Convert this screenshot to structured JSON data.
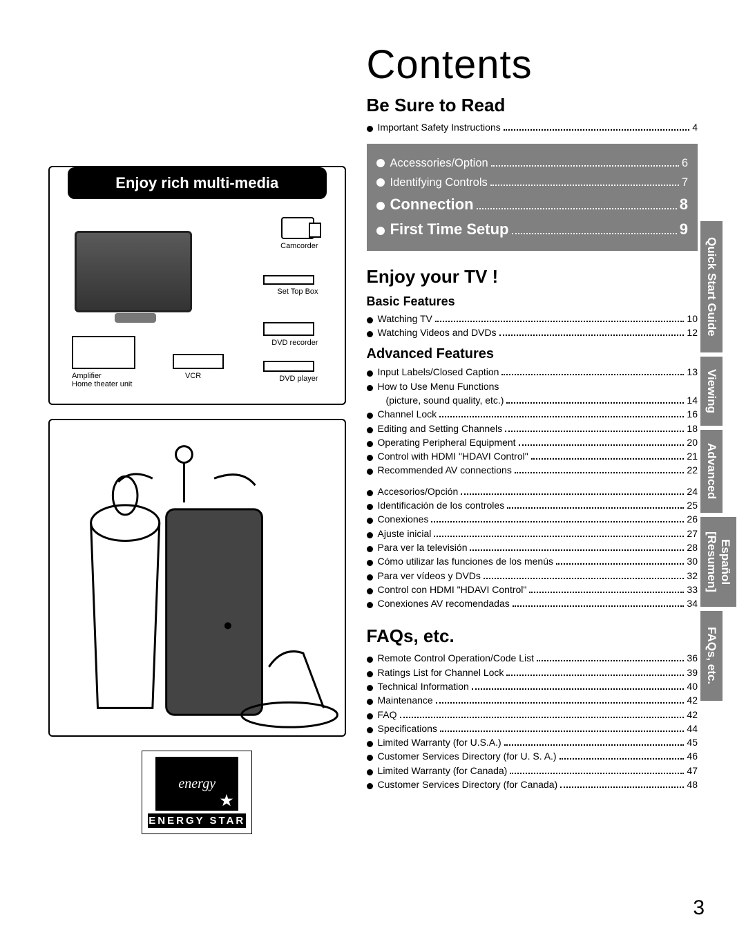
{
  "page_number": "3",
  "left": {
    "mm_title": "Enjoy rich multi-media",
    "labels": {
      "camcorder": "Camcorder",
      "settop": "Set Top Box",
      "dvdrec": "DVD recorder",
      "amp1": "Amplifier",
      "amp2": "Home theater unit",
      "vcr": "VCR",
      "dvdplayer": "DVD player"
    },
    "energy_word": "energy",
    "energy_star": "ENERGY STAR"
  },
  "tabs": [
    "Quick Start Guide",
    "Viewing",
    "Advanced",
    "Español\n[Resumen]",
    "FAQs, etc."
  ],
  "toc": {
    "title": "Contents",
    "besure": {
      "heading": "Be Sure to Read",
      "items": [
        {
          "label": "Important Safety Instructions",
          "page": "4"
        }
      ]
    },
    "quickstart": [
      {
        "label": "Accessories/Option",
        "page": "6",
        "big": false
      },
      {
        "label": "Identifying Controls",
        "page": "7",
        "big": false
      },
      {
        "label": "Connection",
        "page": "8",
        "big": true
      },
      {
        "label": "First Time Setup",
        "page": "9",
        "big": true
      }
    ],
    "enjoy": {
      "heading": "Enjoy your TV !"
    },
    "basic": {
      "heading": "Basic Features",
      "items": [
        {
          "label": "Watching TV",
          "page": "10"
        },
        {
          "label": "Watching Videos and DVDs",
          "page": "12"
        }
      ]
    },
    "advanced": {
      "heading": "Advanced Features",
      "items": [
        {
          "label": "Input Labels/Closed Caption",
          "page": "13"
        },
        {
          "label": "How to Use Menu Functions",
          "page": ""
        },
        {
          "label": "(picture, sound quality, etc.)",
          "page": "14",
          "indent": true,
          "nobullet": true
        },
        {
          "label": "Channel Lock",
          "page": "16"
        },
        {
          "label": "Editing and Setting Channels",
          "page": "18"
        },
        {
          "label": "Operating Peripheral Equipment",
          "page": "20"
        },
        {
          "label": "Control with HDMI \"HDAVI Control\"",
          "page": "21"
        },
        {
          "label": "Recommended AV connections",
          "page": "22"
        }
      ]
    },
    "espanol": {
      "items": [
        {
          "label": "Accesorios/Opción",
          "page": "24"
        },
        {
          "label": "Identificación de los controles",
          "page": "25"
        },
        {
          "label": "Conexiones",
          "page": "26"
        },
        {
          "label": "Ajuste inicial",
          "page": "27"
        },
        {
          "label": "Para ver la televisión",
          "page": "28"
        },
        {
          "label": "Cómo utilizar las funciones de los menús",
          "page": "30"
        },
        {
          "label": "Para ver vídeos y DVDs",
          "page": "32"
        },
        {
          "label": "Control con HDMI \"HDAVI Control\"",
          "page": "33"
        },
        {
          "label": "Conexiones AV recomendadas",
          "page": "34"
        }
      ]
    },
    "faqs": {
      "heading": "FAQs, etc.",
      "items": [
        {
          "label": "Remote Control Operation/Code List",
          "page": "36"
        },
        {
          "label": "Ratings List for Channel Lock",
          "page": "39"
        },
        {
          "label": "Technical Information",
          "page": "40"
        },
        {
          "label": "Maintenance",
          "page": "42"
        },
        {
          "label": "FAQ",
          "page": "42"
        },
        {
          "label": "Specifications",
          "page": "44"
        },
        {
          "label": "Limited Warranty (for U.S.A.)",
          "page": "45"
        },
        {
          "label": "Customer Services Directory (for U. S. A.)",
          "page": "46"
        },
        {
          "label": "Limited Warranty (for Canada)",
          "page": "47"
        },
        {
          "label": "Customer Services Directory (for Canada)",
          "page": "48"
        }
      ]
    }
  }
}
